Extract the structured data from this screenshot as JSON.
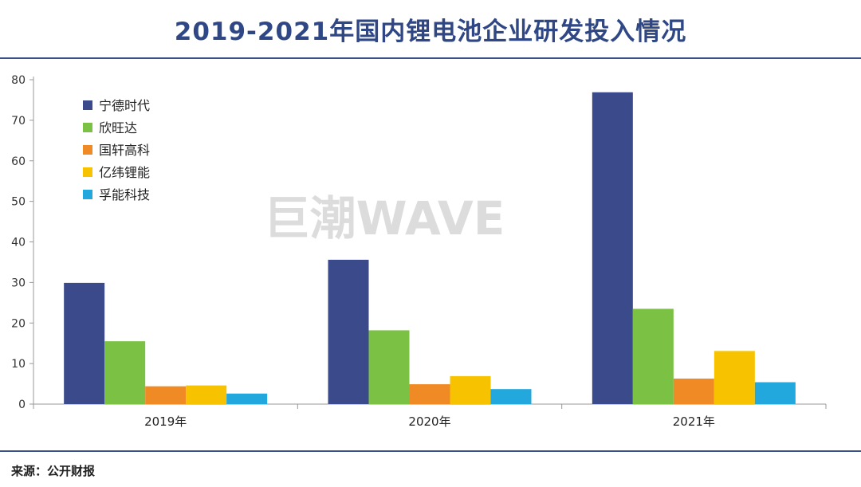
{
  "title": "2019-2021年国内锂电池企业研发投入情况",
  "source": "来源：公开财报",
  "watermark": "巨潮WAVE",
  "colors": {
    "title": "#2f4785",
    "rule": "#3a4f86",
    "axis": "#999999",
    "watermark": "#dcdcdc"
  },
  "chart_data": {
    "type": "bar",
    "title": "2019-2021年国内锂电池企业研发投入情况",
    "xlabel": "",
    "ylabel": "",
    "ylim": [
      0,
      80
    ],
    "yticks": [
      0,
      10,
      20,
      30,
      40,
      50,
      60,
      70,
      80
    ],
    "categories": [
      "2019年",
      "2020年",
      "2021年"
    ],
    "legend_position": "top-left",
    "grid": false,
    "series": [
      {
        "name": "宁德时代",
        "color": "#3b4a8a",
        "values": [
          29.9,
          35.6,
          76.9
        ]
      },
      {
        "name": "欣旺达",
        "color": "#7bc143",
        "values": [
          15.5,
          18.2,
          23.5
        ]
      },
      {
        "name": "国轩高科",
        "color": "#f08a24",
        "values": [
          4.4,
          4.9,
          6.3
        ]
      },
      {
        "name": "亿纬锂能",
        "color": "#f7c300",
        "values": [
          4.6,
          6.9,
          13.1
        ]
      },
      {
        "name": "孚能科技",
        "color": "#22a8dd",
        "values": [
          2.6,
          3.7,
          5.4
        ]
      }
    ]
  }
}
